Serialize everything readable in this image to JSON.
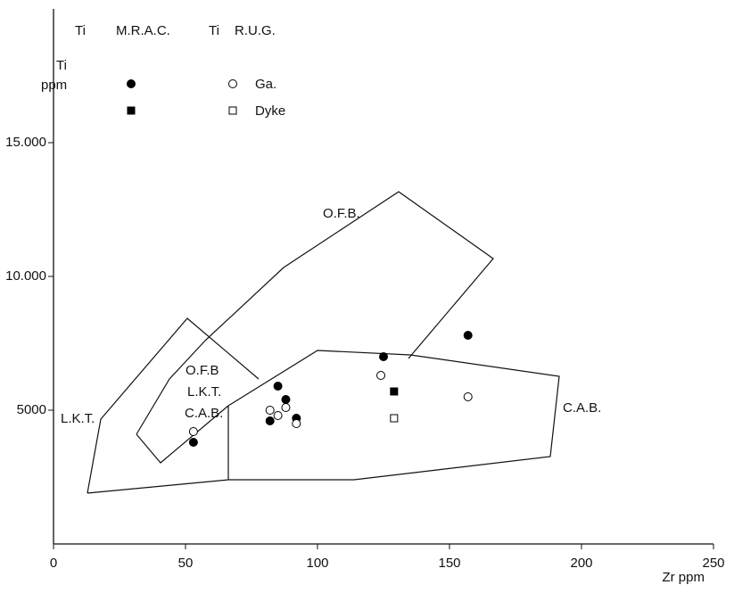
{
  "chart_data": {
    "type": "scatter",
    "xlabel": "Zr  ppm",
    "ylabel": [
      "Ti",
      "ppm"
    ],
    "xlim": [
      0,
      250
    ],
    "ylim": [
      0,
      20000
    ],
    "xticks": [
      0,
      50,
      100,
      150,
      200,
      250
    ],
    "yticks": [
      5000,
      {
        "value": 10000,
        "label": "10.000"
      },
      {
        "value": 15000,
        "label": "15.000"
      }
    ],
    "legend_headers": [
      [
        "Ti",
        "M.R.A.C."
      ],
      [
        "Ti",
        "R.U.G."
      ]
    ],
    "series": [
      {
        "name": "Ga.",
        "group": "M.R.A.C.",
        "marker": "circle",
        "filled": true,
        "color": "#000000",
        "x": [
          53,
          85,
          82,
          88,
          92,
          125,
          157
        ],
        "y": [
          3800,
          5900,
          4600,
          5400,
          4700,
          7000,
          7800
        ]
      },
      {
        "name": "Ga.",
        "group": "R.U.G.",
        "marker": "circle",
        "filled": false,
        "color": "#000000",
        "x": [
          53,
          82,
          85,
          88,
          92,
          124,
          157
        ],
        "y": [
          4200,
          5000,
          4800,
          5100,
          4500,
          6300,
          5500
        ]
      },
      {
        "name": "Dyke",
        "group": "M.R.A.C.",
        "marker": "square",
        "filled": true,
        "color": "#000000",
        "x": [
          129
        ],
        "y": [
          5700
        ]
      },
      {
        "name": "Dyke",
        "group": "R.U.G.",
        "marker": "square",
        "filled": false,
        "color": "#000000",
        "x": [
          129
        ],
        "y": [
          4700
        ]
      }
    ],
    "annotations": [
      "O.F.B.",
      "O.F.B",
      "L.K.T.",
      "C.A.B.",
      "L.K.T.",
      "C.A.B."
    ]
  }
}
